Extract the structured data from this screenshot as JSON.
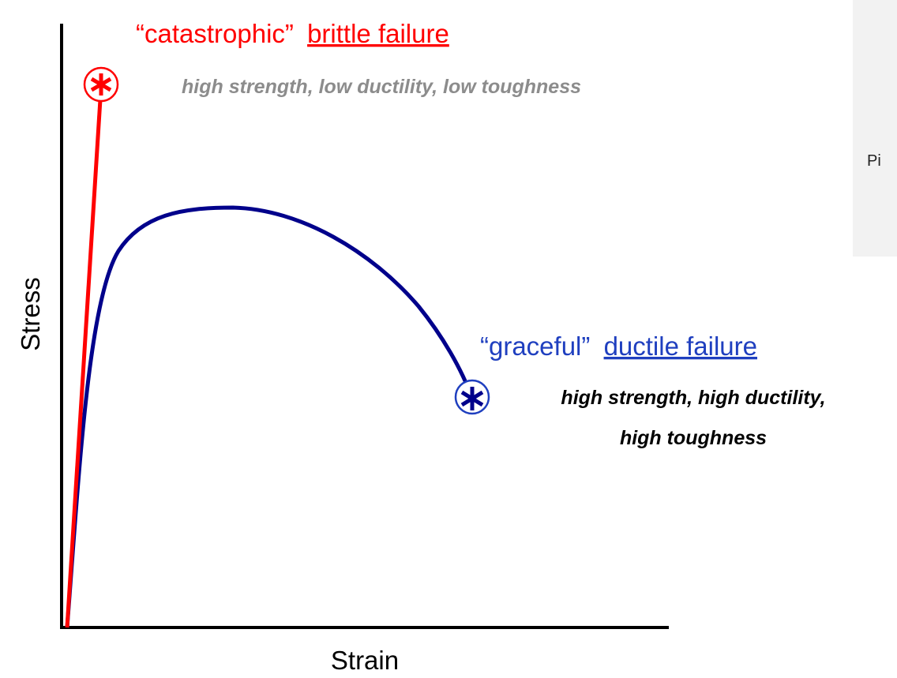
{
  "brittle": {
    "label": "“catastrophic”",
    "failure": "brittle failure",
    "note": "high strength, low ductility, low toughness"
  },
  "ductile": {
    "label": "“graceful”",
    "failure": "ductile failure",
    "note": [
      "high strength, high ductility,",
      "high toughness"
    ]
  },
  "axes": {
    "y": "Stress",
    "x": "Strain"
  },
  "side_panel": "Pi"
}
